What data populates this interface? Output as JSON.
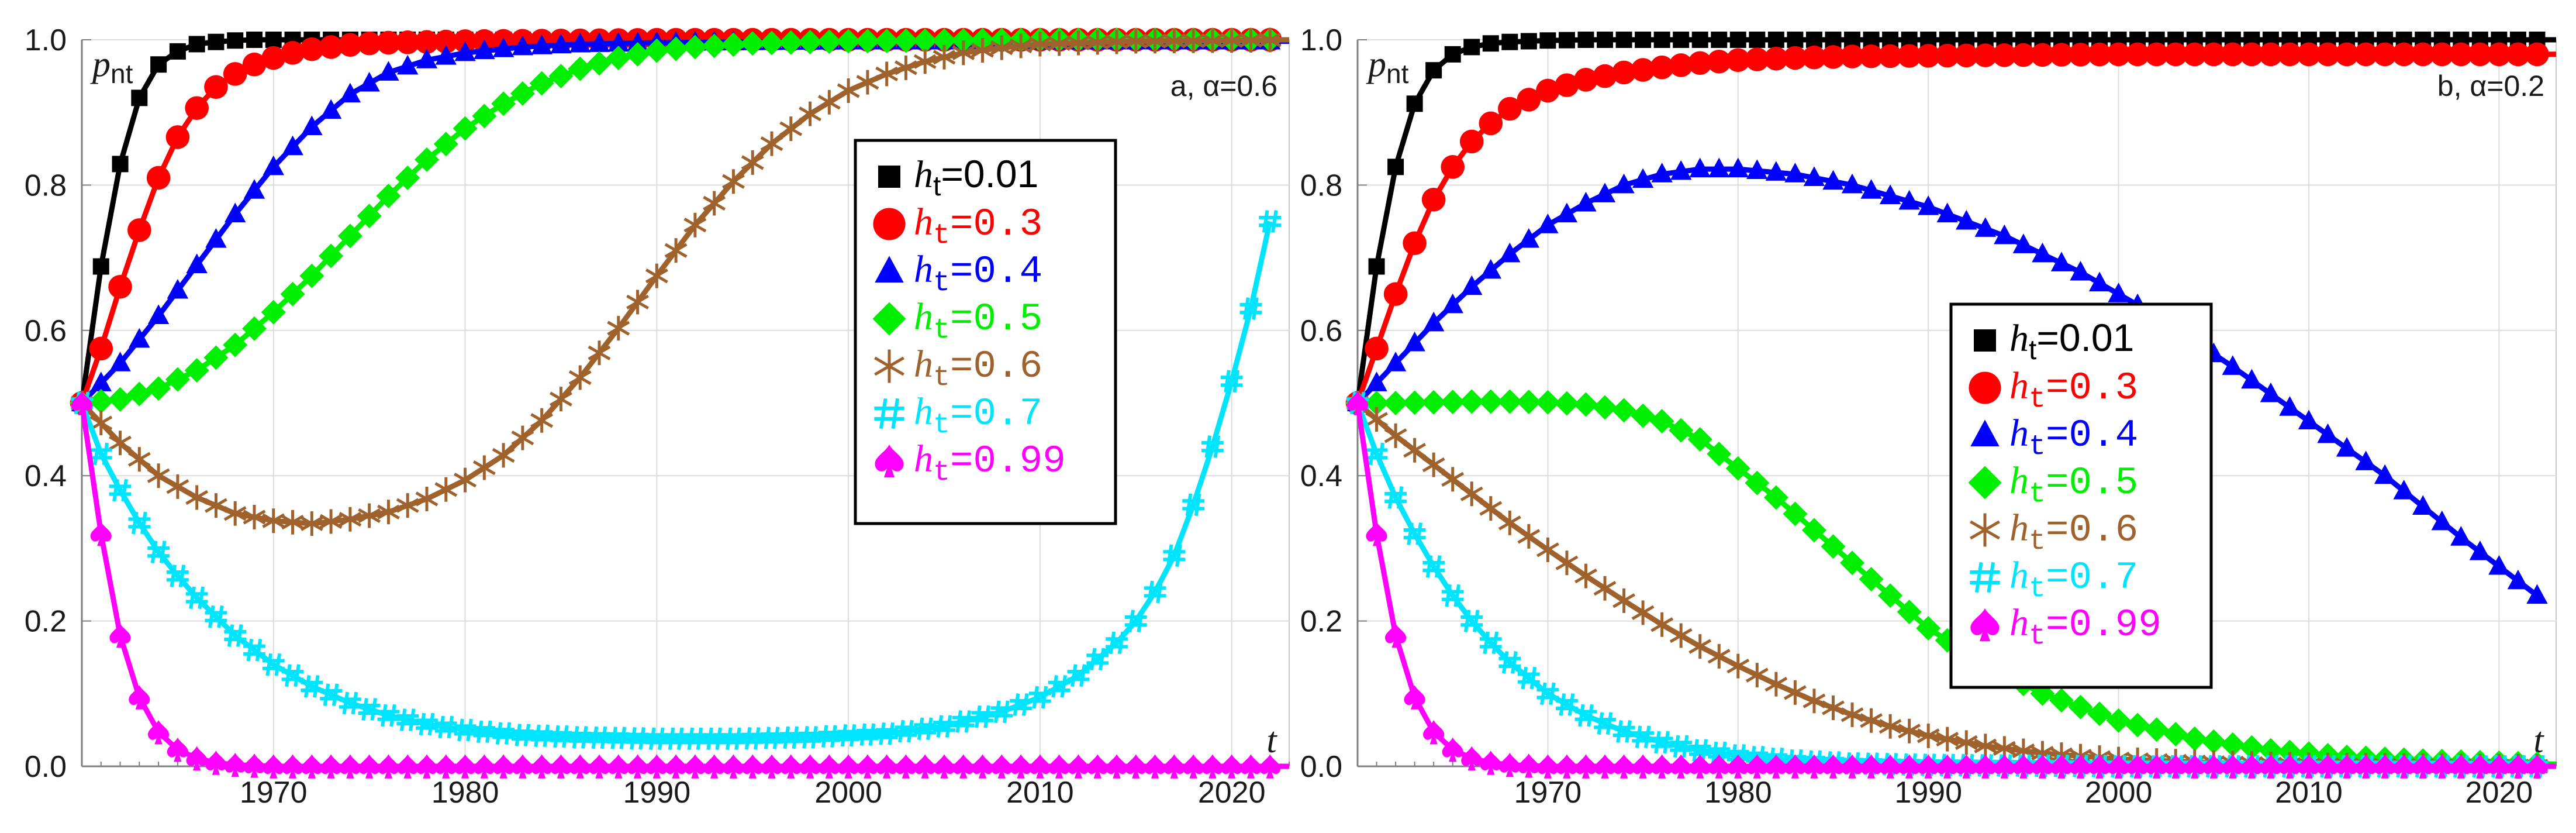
{
  "chart_data": [
    {
      "type": "line",
      "panel_label": "a, α=0.6",
      "ylabel": "p",
      "ylabel_sub": "nt",
      "xlabel": "t",
      "xlim": [
        1960,
        2023
      ],
      "ylim": [
        0,
        1.0
      ],
      "xticks": [
        1970,
        1980,
        1990,
        2000,
        2010,
        2020
      ],
      "yticks": [
        0.0,
        0.2,
        0.4,
        0.6,
        0.8,
        1.0
      ],
      "ytick_labels": [
        "0.0",
        "0.2",
        "0.4",
        "0.6",
        "0.8",
        "1.0"
      ],
      "grid": true,
      "legend_position": "upper-middle",
      "series": [
        {
          "name": "ht=0.01",
          "h_label": "h",
          "h_sub": "t",
          "h_value": "=0.01",
          "font": "sans",
          "color": "#000000",
          "marker": "square",
          "x": [
            1960,
            1961,
            1962,
            1963,
            1964,
            1965,
            1966,
            1967,
            1968,
            1969,
            1970,
            1972,
            1975,
            1980,
            1985,
            1990,
            1995,
            2000,
            2005,
            2010,
            2015,
            2020,
            2023
          ],
          "y": [
            0.5,
            0.688,
            0.829,
            0.92,
            0.966,
            0.984,
            0.994,
            0.997,
            0.999,
            1.0,
            1.0,
            1.0,
            1.0,
            1.0,
            1.0,
            1.0,
            1.0,
            1.0,
            1.0,
            1.0,
            1.0,
            1.0,
            1.0
          ]
        },
        {
          "name": "ht=0.3",
          "h_label": "h",
          "h_sub": "t",
          "h_value": "=0.3",
          "font": "mono",
          "color": "#ff0000",
          "marker": "circle",
          "x": [
            1960,
            1961,
            1962,
            1963,
            1964,
            1965,
            1966,
            1967,
            1968,
            1969,
            1970,
            1971,
            1972,
            1973,
            1974,
            1975,
            1976,
            1978,
            1980,
            1985,
            1990,
            1995,
            2000,
            2005,
            2010,
            2015,
            2020,
            2023
          ],
          "y": [
            0.5,
            0.575,
            0.66,
            0.738,
            0.81,
            0.866,
            0.906,
            0.935,
            0.953,
            0.966,
            0.975,
            0.982,
            0.987,
            0.99,
            0.993,
            0.995,
            0.996,
            0.997,
            0.998,
            0.999,
            1.0,
            1.0,
            1.0,
            1.0,
            1.0,
            1.0,
            1.0,
            1.0
          ]
        },
        {
          "name": "ht=0.4",
          "h_label": "h",
          "h_sub": "t",
          "h_value": "=0.4",
          "font": "mono",
          "color": "#0000ff",
          "marker": "triangle",
          "x": [
            1960,
            1962,
            1964,
            1966,
            1968,
            1970,
            1972,
            1974,
            1976,
            1978,
            1980,
            1983,
            1986,
            1990,
            1995,
            2000,
            2005,
            2010,
            2015,
            2020,
            2023
          ],
          "y": [
            0.5,
            0.555,
            0.62,
            0.69,
            0.76,
            0.825,
            0.88,
            0.925,
            0.955,
            0.972,
            0.982,
            0.99,
            0.994,
            0.996,
            0.997,
            0.998,
            0.998,
            0.998,
            0.998,
            0.998,
            0.998
          ]
        },
        {
          "name": "ht=0.5",
          "h_label": "h",
          "h_sub": "t",
          "h_value": "=0.5",
          "font": "mono",
          "color": "#00ee00",
          "marker": "diamond",
          "x": [
            1960,
            1962,
            1964,
            1966,
            1968,
            1970,
            1972,
            1974,
            1976,
            1978,
            1980,
            1982,
            1984,
            1986,
            1988,
            1990,
            1992,
            1995,
            2000,
            2005,
            2010,
            2015,
            2020,
            2023
          ],
          "y": [
            0.5,
            0.505,
            0.52,
            0.545,
            0.58,
            0.625,
            0.675,
            0.73,
            0.785,
            0.835,
            0.878,
            0.912,
            0.94,
            0.96,
            0.975,
            0.985,
            0.99,
            0.995,
            0.998,
            0.999,
            1.0,
            1.0,
            1.0,
            1.0
          ]
        },
        {
          "name": "ht=0.6",
          "h_label": "h",
          "h_sub": "t",
          "h_value": "=0.6",
          "font": "mono",
          "color": "#a0622d",
          "marker": "star",
          "x": [
            1960,
            1962,
            1964,
            1966,
            1968,
            1970,
            1972,
            1974,
            1976,
            1978,
            1980,
            1982,
            1984,
            1986,
            1988,
            1990,
            1992,
            1994,
            1996,
            1998,
            2000,
            2002,
            2004,
            2006,
            2008,
            2010,
            2015,
            2020,
            2023
          ],
          "y": [
            0.5,
            0.445,
            0.4,
            0.37,
            0.348,
            0.338,
            0.334,
            0.34,
            0.35,
            0.368,
            0.394,
            0.428,
            0.476,
            0.535,
            0.603,
            0.675,
            0.745,
            0.805,
            0.857,
            0.898,
            0.93,
            0.953,
            0.97,
            0.982,
            0.989,
            0.994,
            0.998,
            0.999,
            1.0
          ]
        },
        {
          "name": "ht=0.7",
          "h_label": "h",
          "h_sub": "t",
          "h_value": "=0.7",
          "font": "mono",
          "color": "#00e5ff",
          "marker": "hash",
          "x": [
            1960,
            1961,
            1962,
            1963,
            1964,
            1965,
            1966,
            1968,
            1970,
            1972,
            1974,
            1976,
            1978,
            1980,
            1983,
            1986,
            1990,
            1994,
            1998,
            2002,
            2005,
            2008,
            2010,
            2012,
            2014,
            2015,
            2016,
            2017,
            2018,
            2019,
            2020,
            2021,
            2022
          ],
          "y": [
            0.5,
            0.43,
            0.38,
            0.335,
            0.295,
            0.262,
            0.232,
            0.18,
            0.14,
            0.11,
            0.087,
            0.07,
            0.058,
            0.05,
            0.043,
            0.04,
            0.038,
            0.038,
            0.04,
            0.045,
            0.055,
            0.075,
            0.095,
            0.125,
            0.17,
            0.2,
            0.24,
            0.29,
            0.36,
            0.44,
            0.53,
            0.63,
            0.75
          ]
        },
        {
          "name": "ht=0.99",
          "h_label": "h",
          "h_sub": "t",
          "h_value": "=0.99",
          "font": "mono",
          "color": "#ff00ff",
          "marker": "spade",
          "x": [
            1960,
            1961,
            1962,
            1963,
            1964,
            1965,
            1966,
            1967,
            1968,
            1970,
            1975,
            1980,
            1985,
            1990,
            1995,
            2000,
            2005,
            2010,
            2015,
            2020,
            2023
          ],
          "y": [
            0.5,
            0.32,
            0.18,
            0.095,
            0.047,
            0.023,
            0.011,
            0.005,
            0.002,
            0.0,
            0.0,
            0.0,
            0.0,
            0.0,
            0.0,
            0.0,
            0.0,
            0.0,
            0.0,
            0.0,
            0.0
          ]
        }
      ]
    },
    {
      "type": "line",
      "panel_label": "b, α=0.2",
      "ylabel": "p",
      "ylabel_sub": "nt",
      "xlabel": "t",
      "xlim": [
        1960,
        2023
      ],
      "ylim": [
        0,
        1.0
      ],
      "xticks": [
        1970,
        1980,
        1990,
        2000,
        2010,
        2020
      ],
      "yticks": [
        0.0,
        0.2,
        0.4,
        0.6,
        0.8,
        1.0
      ],
      "ytick_labels": [
        "0.0",
        "0.2",
        "0.4",
        "0.6",
        "0.8",
        "1.0"
      ],
      "grid": true,
      "legend_position": "middle",
      "series": [
        {
          "name": "ht=0.01",
          "h_label": "h",
          "h_sub": "t",
          "h_value": "=0.01",
          "font": "sans",
          "color": "#000000",
          "marker": "square",
          "x": [
            1960,
            1961,
            1962,
            1963,
            1964,
            1965,
            1966,
            1967,
            1968,
            1969,
            1970,
            1972,
            1975,
            1980,
            1985,
            1990,
            1995,
            2000,
            2005,
            2010,
            2015,
            2020,
            2023
          ],
          "y": [
            0.5,
            0.688,
            0.825,
            0.912,
            0.958,
            0.98,
            0.99,
            0.995,
            0.997,
            0.998,
            0.999,
            1.0,
            1.0,
            1.0,
            1.0,
            1.0,
            1.0,
            1.0,
            1.0,
            1.0,
            1.0,
            1.0,
            1.0
          ]
        },
        {
          "name": "ht=0.3",
          "h_label": "h",
          "h_sub": "t",
          "h_value": "=0.3",
          "font": "mono",
          "color": "#ff0000",
          "marker": "circle",
          "x": [
            1960,
            1961,
            1962,
            1963,
            1964,
            1965,
            1966,
            1967,
            1968,
            1970,
            1972,
            1974,
            1976,
            1978,
            1980,
            1983,
            1986,
            1990,
            1995,
            2000,
            2005,
            2010,
            2015,
            2020,
            2023
          ],
          "y": [
            0.5,
            0.575,
            0.65,
            0.72,
            0.78,
            0.825,
            0.86,
            0.885,
            0.905,
            0.93,
            0.945,
            0.955,
            0.962,
            0.968,
            0.972,
            0.975,
            0.977,
            0.978,
            0.979,
            0.98,
            0.98,
            0.98,
            0.98,
            0.98,
            0.98
          ]
        },
        {
          "name": "ht=0.4",
          "h_label": "h",
          "h_sub": "t",
          "h_value": "=0.4",
          "font": "mono",
          "color": "#0000ff",
          "marker": "triangle",
          "x": [
            1960,
            1962,
            1964,
            1966,
            1968,
            1970,
            1972,
            1974,
            1976,
            1978,
            1980,
            1983,
            1986,
            1990,
            1994,
            1998,
            2002,
            2006,
            2010,
            2014,
            2018,
            2022
          ],
          "y": [
            0.5,
            0.555,
            0.61,
            0.66,
            0.705,
            0.745,
            0.775,
            0.8,
            0.815,
            0.822,
            0.822,
            0.815,
            0.8,
            0.77,
            0.73,
            0.68,
            0.62,
            0.55,
            0.475,
            0.4,
            0.315,
            0.235
          ]
        },
        {
          "name": "ht=0.5",
          "h_label": "h",
          "h_sub": "t",
          "h_value": "=0.5",
          "font": "mono",
          "color": "#00ee00",
          "marker": "diamond",
          "x": [
            1960,
            1962,
            1964,
            1966,
            1968,
            1970,
            1972,
            1974,
            1976,
            1978,
            1980,
            1982,
            1984,
            1986,
            1988,
            1990,
            1993,
            1996,
            2000,
            2004,
            2008,
            2012,
            2016,
            2020,
            2023
          ],
          "y": [
            0.5,
            0.5,
            0.501,
            0.502,
            0.502,
            0.501,
            0.498,
            0.49,
            0.475,
            0.45,
            0.41,
            0.37,
            0.325,
            0.28,
            0.235,
            0.19,
            0.14,
            0.1,
            0.063,
            0.038,
            0.022,
            0.013,
            0.008,
            0.005,
            0.003
          ]
        },
        {
          "name": "ht=0.6",
          "h_label": "h",
          "h_sub": "t",
          "h_value": "=0.6",
          "font": "mono",
          "color": "#a0622d",
          "marker": "star",
          "x": [
            1960,
            1962,
            1964,
            1966,
            1968,
            1970,
            1972,
            1974,
            1976,
            1978,
            1980,
            1982,
            1984,
            1986,
            1988,
            1990,
            1993,
            1996,
            2000,
            2005,
            2010,
            2015,
            2020,
            2023
          ],
          "y": [
            0.5,
            0.455,
            0.415,
            0.375,
            0.335,
            0.298,
            0.262,
            0.228,
            0.195,
            0.165,
            0.138,
            0.113,
            0.09,
            0.071,
            0.055,
            0.042,
            0.028,
            0.018,
            0.01,
            0.005,
            0.002,
            0.001,
            0.0,
            0.0
          ]
        },
        {
          "name": "ht=0.7",
          "h_label": "h",
          "h_sub": "t",
          "h_value": "=0.7",
          "font": "mono",
          "color": "#00e5ff",
          "marker": "hash",
          "x": [
            1960,
            1961,
            1962,
            1963,
            1964,
            1965,
            1966,
            1967,
            1968,
            1970,
            1972,
            1974,
            1976,
            1978,
            1980,
            1983,
            1986,
            1990,
            1995,
            2000,
            2005,
            2010,
            2015,
            2020,
            2023
          ],
          "y": [
            0.5,
            0.43,
            0.37,
            0.32,
            0.275,
            0.235,
            0.2,
            0.17,
            0.143,
            0.1,
            0.07,
            0.048,
            0.033,
            0.022,
            0.015,
            0.008,
            0.004,
            0.002,
            0.001,
            0.0,
            0.0,
            0.0,
            0.0,
            0.0,
            0.0
          ]
        },
        {
          "name": "ht=0.99",
          "h_label": "h",
          "h_sub": "t",
          "h_value": "=0.99",
          "font": "mono",
          "color": "#ff00ff",
          "marker": "spade",
          "x": [
            1960,
            1961,
            1962,
            1963,
            1964,
            1965,
            1966,
            1967,
            1968,
            1970,
            1975,
            1980,
            1985,
            1990,
            1995,
            2000,
            2005,
            2010,
            2015,
            2020,
            2023
          ],
          "y": [
            0.5,
            0.32,
            0.18,
            0.095,
            0.047,
            0.023,
            0.011,
            0.005,
            0.002,
            0.0,
            0.0,
            0.0,
            0.0,
            0.0,
            0.0,
            0.0,
            0.0,
            0.0,
            0.0,
            0.0,
            0.0
          ]
        }
      ]
    }
  ]
}
